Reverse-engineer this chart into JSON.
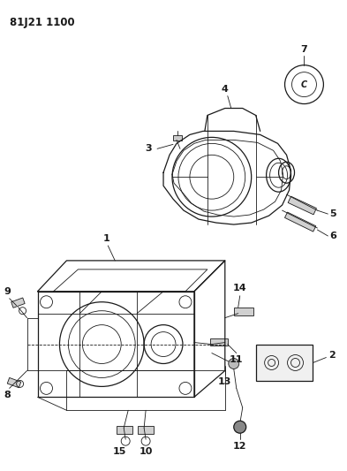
{
  "title": "81J21 1100",
  "bg": "#ffffff",
  "lc": "#1a1a1a",
  "fig_w": 3.93,
  "fig_h": 5.33,
  "dpi": 100
}
